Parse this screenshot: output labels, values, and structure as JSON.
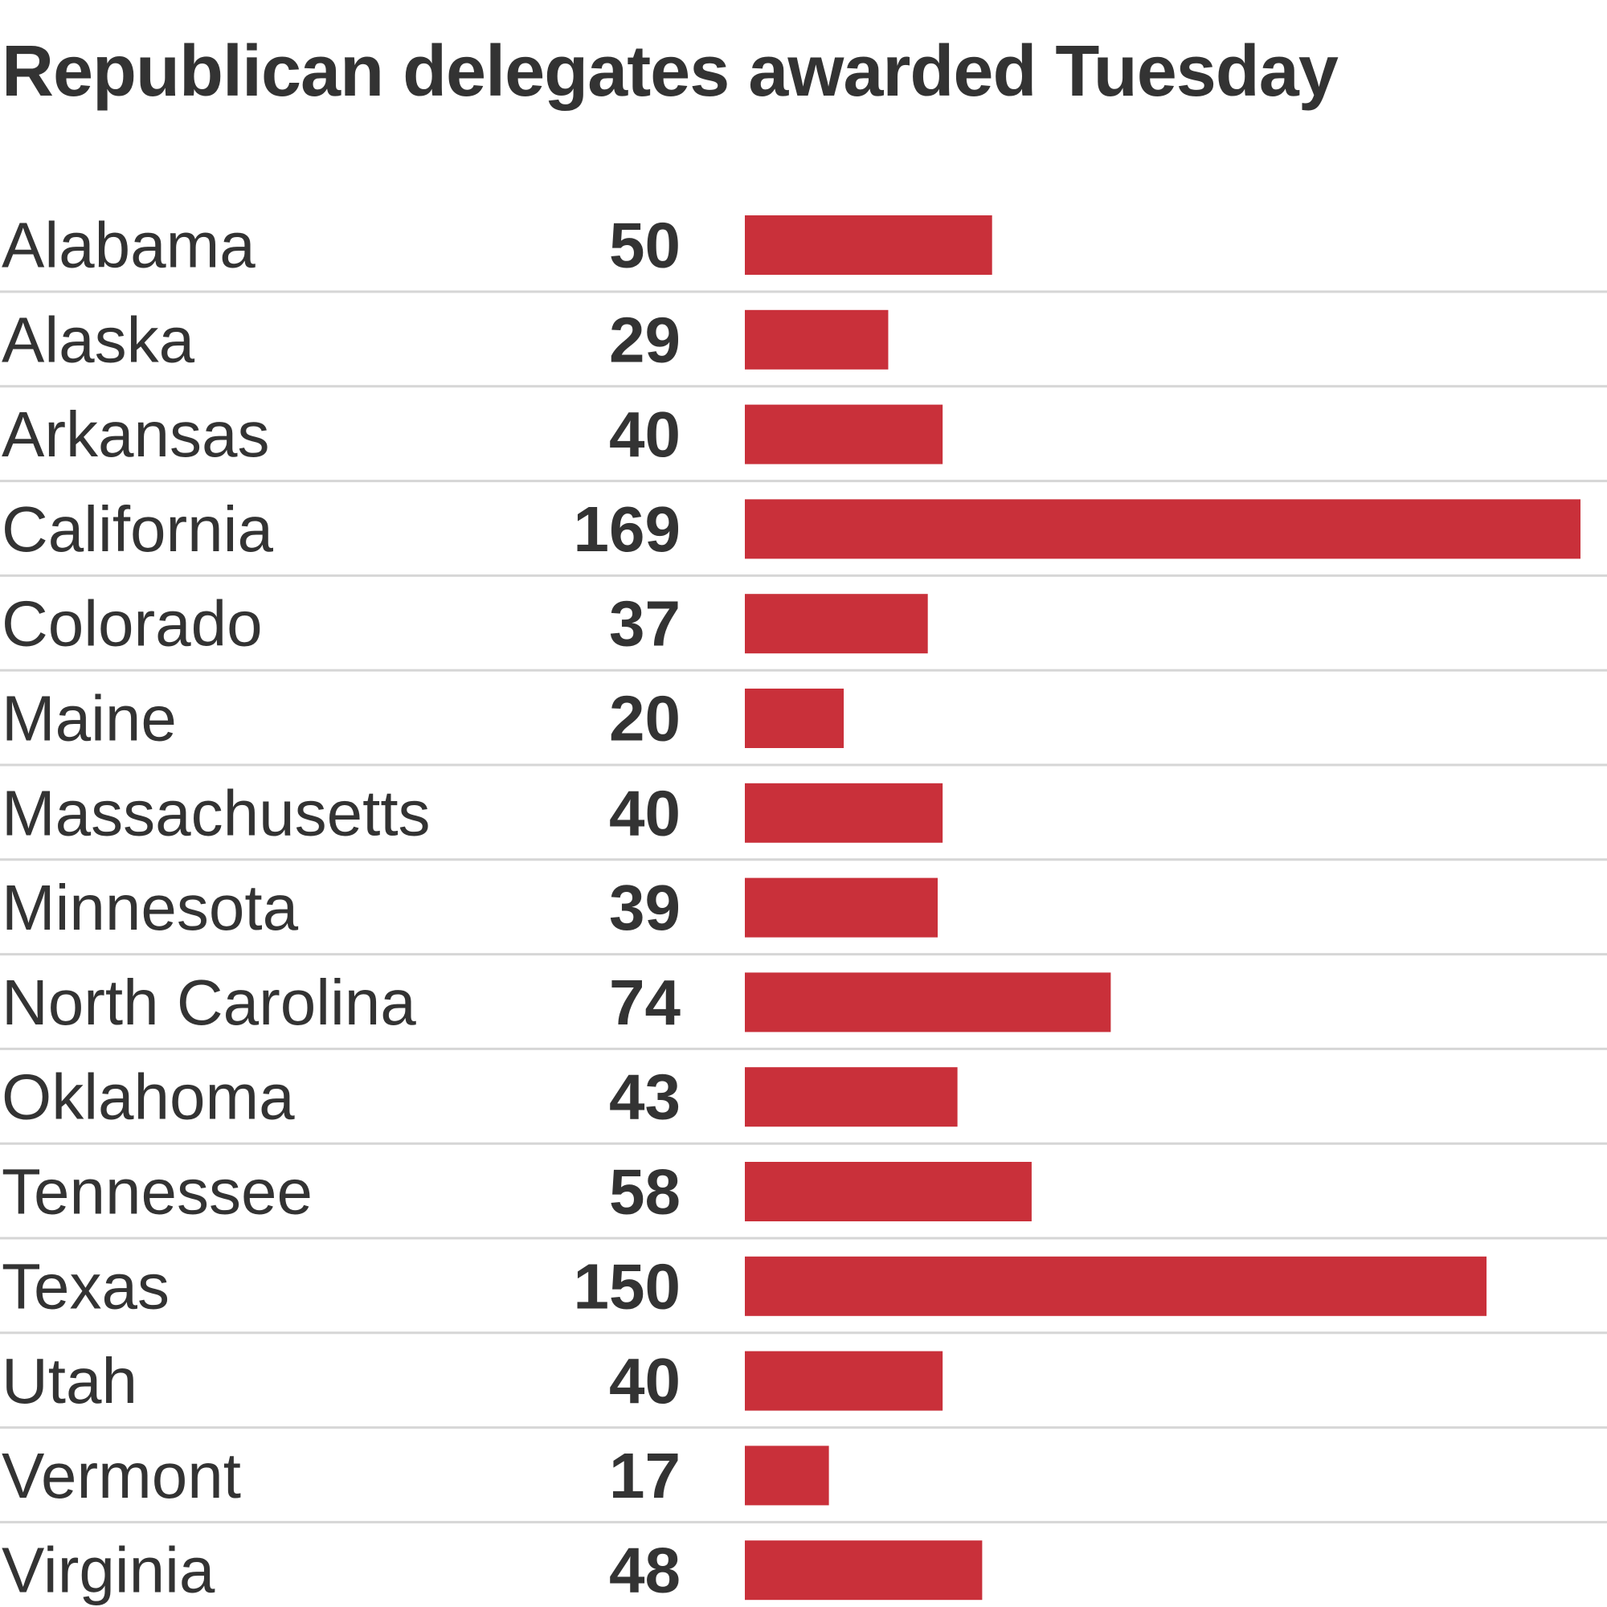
{
  "chart_data": {
    "type": "bar",
    "orientation": "horizontal",
    "title": "Republican delegates awarded Tuesday",
    "xlabel": "",
    "ylabel": "",
    "xlim": [
      0,
      169
    ],
    "grid": false,
    "legend": "none",
    "bar_color": "#c9303a",
    "categories": [
      "Alabama",
      "Alaska",
      "Arkansas",
      "California",
      "Colorado",
      "Maine",
      "Massachusetts",
      "Minnesota",
      "North Carolina",
      "Oklahoma",
      "Tennessee",
      "Texas",
      "Utah",
      "Vermont",
      "Virginia"
    ],
    "values": [
      50,
      29,
      40,
      169,
      37,
      20,
      40,
      39,
      74,
      43,
      58,
      150,
      40,
      17,
      48
    ]
  }
}
